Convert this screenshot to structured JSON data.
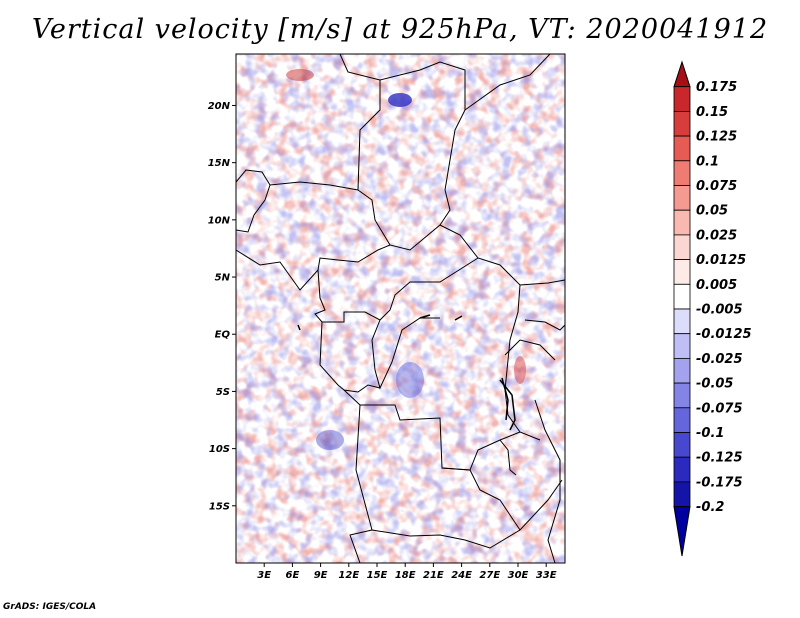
{
  "title": "Vertical velocity [m/s] at 925hPa, VT: 2020041912",
  "credit": "GrADS: IGES/COLA",
  "map": {
    "lon_range": [
      0,
      35
    ],
    "lat_range": [
      -20,
      24.5
    ],
    "lon_ticks": [
      "3E",
      "6E",
      "9E",
      "12E",
      "15E",
      "18E",
      "21E",
      "24E",
      "27E",
      "30E",
      "33E"
    ],
    "lat_ticks": [
      "20N",
      "15N",
      "10N",
      "5N",
      "EQ",
      "5S",
      "10S",
      "15S"
    ],
    "lon_tick_values": [
      3,
      6,
      9,
      12,
      15,
      18,
      21,
      24,
      27,
      30,
      33
    ],
    "lat_tick_values": [
      20,
      15,
      10,
      5,
      0,
      -5,
      -10,
      -15
    ]
  },
  "colorbar": {
    "levels": [
      "0.175",
      "0.15",
      "0.125",
      "0.1",
      "0.075",
      "0.05",
      "0.025",
      "0.0125",
      "0.005",
      "-0.005",
      "-0.0125",
      "-0.025",
      "-0.05",
      "-0.075",
      "-0.1",
      "-0.125",
      "-0.175",
      "-0.2"
    ],
    "colors": [
      "#a50f15",
      "#c8272b",
      "#d73d3a",
      "#e65b54",
      "#ef7b73",
      "#f49a91",
      "#f9b9b1",
      "#fcd7d2",
      "#fdebe8",
      "#ffffff",
      "#dcdcfb",
      "#bfbff6",
      "#a2a2ef",
      "#8484e6",
      "#6666dc",
      "#4848cf",
      "#2a2abf",
      "#1414a8",
      "#0000a0"
    ]
  }
}
